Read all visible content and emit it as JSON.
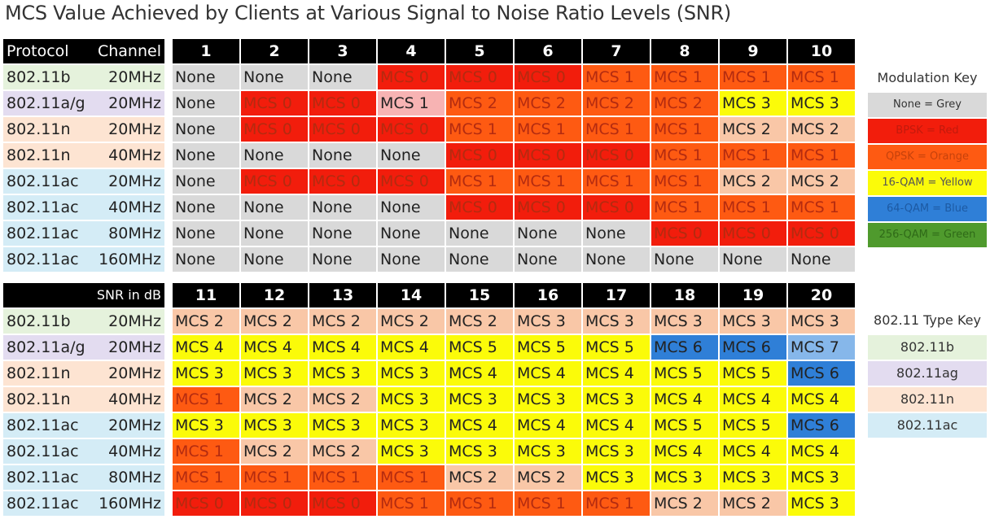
{
  "title": "MCS Value Achieved by Clients at Various Signal to Noise Ratio Levels (SNR)",
  "colors": {
    "grey": "#d9d9d9",
    "red": "#f21d0c",
    "orange": "#fe5a12",
    "light_orange": "#f9c7a7",
    "pink": "#f7b3b3",
    "yellow": "#fbfb09",
    "blue": "#2f7fd7",
    "light_blue": "#86b7ea",
    "green": "#4f9a2d",
    "type_b": "#e5f2dc",
    "type_ag": "#e3dcf0",
    "type_n": "#fde4d2",
    "type_ac": "#d4ecf6"
  },
  "table1": {
    "protocol_header": "Protocol",
    "channel_header": "Channel",
    "columns": [
      "1",
      "2",
      "3",
      "4",
      "5",
      "6",
      "7",
      "8",
      "9",
      "10"
    ]
  },
  "table2": {
    "left_header": "SNR in dB",
    "columns": [
      "11",
      "12",
      "13",
      "14",
      "15",
      "16",
      "17",
      "18",
      "19",
      "20"
    ]
  },
  "rows": [
    {
      "protocol": "802.11b",
      "channel": "20MHz",
      "type": "type_b"
    },
    {
      "protocol": "802.11a/g",
      "channel": "20MHz",
      "type": "type_ag"
    },
    {
      "protocol": "802.11n",
      "channel": "20MHz",
      "type": "type_n"
    },
    {
      "protocol": "802.11n",
      "channel": "40MHz",
      "type": "type_n"
    },
    {
      "protocol": "802.11ac",
      "channel": "20MHz",
      "type": "type_ac"
    },
    {
      "protocol": "802.11ac",
      "channel": "40MHz",
      "type": "type_ac"
    },
    {
      "protocol": "802.11ac",
      "channel": "80MHz",
      "type": "type_ac"
    },
    {
      "protocol": "802.11ac",
      "channel": "160MHz",
      "type": "type_ac"
    }
  ],
  "chart_data": {
    "type": "table",
    "title": "MCS Value Achieved by Clients at Various Signal to Noise Ratio Levels (SNR)",
    "snr_db": [
      1,
      2,
      3,
      4,
      5,
      6,
      7,
      8,
      9,
      10,
      11,
      12,
      13,
      14,
      15,
      16,
      17,
      18,
      19,
      20
    ],
    "values": [
      [
        "None",
        "None",
        "None",
        "MCS 0",
        "MCS 0",
        "MCS 0",
        "MCS 1",
        "MCS 1",
        "MCS 1",
        "MCS 1",
        "MCS 2",
        "MCS 2",
        "MCS 2",
        "MCS 2",
        "MCS 2",
        "MCS 3",
        "MCS 3",
        "MCS 3",
        "MCS 3",
        "MCS 3"
      ],
      [
        "None",
        "MCS 0",
        "MCS 0",
        "MCS 1",
        "MCS 2",
        "MCS 2",
        "MCS 2",
        "MCS 2",
        "MCS 3",
        "MCS 3",
        "MCS 4",
        "MCS 4",
        "MCS 4",
        "MCS 4",
        "MCS 5",
        "MCS 5",
        "MCS 5",
        "MCS 6",
        "MCS 6",
        "MCS 7"
      ],
      [
        "None",
        "MCS 0",
        "MCS 0",
        "MCS 0",
        "MCS 1",
        "MCS 1",
        "MCS 1",
        "MCS 1",
        "MCS 2",
        "MCS 2",
        "MCS 3",
        "MCS 3",
        "MCS 3",
        "MCS 3",
        "MCS 4",
        "MCS 4",
        "MCS 4",
        "MCS 5",
        "MCS 5",
        "MCS 6"
      ],
      [
        "None",
        "None",
        "None",
        "None",
        "MCS 0",
        "MCS 0",
        "MCS 0",
        "MCS 1",
        "MCS 1",
        "MCS 1",
        "MCS 1",
        "MCS 2",
        "MCS 2",
        "MCS 3",
        "MCS 3",
        "MCS 3",
        "MCS 3",
        "MCS 4",
        "MCS 4",
        "MCS 4"
      ],
      [
        "None",
        "MCS 0",
        "MCS 0",
        "MCS 0",
        "MCS 1",
        "MCS 1",
        "MCS 1",
        "MCS 1",
        "MCS 2",
        "MCS 2",
        "MCS 3",
        "MCS 3",
        "MCS 3",
        "MCS 3",
        "MCS 4",
        "MCS 4",
        "MCS 4",
        "MCS 5",
        "MCS 5",
        "MCS 6"
      ],
      [
        "None",
        "None",
        "None",
        "None",
        "MCS 0",
        "MCS 0",
        "MCS 0",
        "MCS 1",
        "MCS 1",
        "MCS 1",
        "MCS 1",
        "MCS 2",
        "MCS 2",
        "MCS 3",
        "MCS 3",
        "MCS 3",
        "MCS 3",
        "MCS 4",
        "MCS 4",
        "MCS 4"
      ],
      [
        "None",
        "None",
        "None",
        "None",
        "None",
        "None",
        "None",
        "MCS 0",
        "MCS 0",
        "MCS 0",
        "MCS 1",
        "MCS 1",
        "MCS 1",
        "MCS 1",
        "MCS 2",
        "MCS 2",
        "MCS 3",
        "MCS 3",
        "MCS 3",
        "MCS 3"
      ],
      [
        "None",
        "None",
        "None",
        "None",
        "None",
        "None",
        "None",
        "None",
        "None",
        "None",
        "MCS 0",
        "MCS 0",
        "MCS 0",
        "MCS 1",
        "MCS 1",
        "MCS 1",
        "MCS 1",
        "MCS 2",
        "MCS 2",
        "MCS 3"
      ]
    ],
    "fills": [
      [
        "grey",
        "grey",
        "grey",
        "red",
        "red",
        "red",
        "orange",
        "orange",
        "orange",
        "orange",
        "light_orange",
        "light_orange",
        "light_orange",
        "light_orange",
        "light_orange",
        "light_orange",
        "light_orange",
        "light_orange",
        "light_orange",
        "light_orange"
      ],
      [
        "grey",
        "red",
        "red",
        "pink",
        "orange",
        "orange",
        "orange",
        "orange",
        "yellow",
        "yellow",
        "yellow",
        "yellow",
        "yellow",
        "yellow",
        "yellow",
        "yellow",
        "yellow",
        "blue",
        "blue",
        "light_blue"
      ],
      [
        "grey",
        "red",
        "red",
        "red",
        "orange",
        "orange",
        "orange",
        "orange",
        "light_orange",
        "light_orange",
        "yellow",
        "yellow",
        "yellow",
        "yellow",
        "yellow",
        "yellow",
        "yellow",
        "yellow",
        "yellow",
        "blue"
      ],
      [
        "grey",
        "grey",
        "grey",
        "grey",
        "red",
        "red",
        "red",
        "orange",
        "orange",
        "orange",
        "orange",
        "light_orange",
        "light_orange",
        "yellow",
        "yellow",
        "yellow",
        "yellow",
        "yellow",
        "yellow",
        "yellow"
      ],
      [
        "grey",
        "red",
        "red",
        "red",
        "orange",
        "orange",
        "orange",
        "orange",
        "light_orange",
        "light_orange",
        "yellow",
        "yellow",
        "yellow",
        "yellow",
        "yellow",
        "yellow",
        "yellow",
        "yellow",
        "yellow",
        "blue"
      ],
      [
        "grey",
        "grey",
        "grey",
        "grey",
        "red",
        "red",
        "red",
        "orange",
        "orange",
        "orange",
        "orange",
        "light_orange",
        "light_orange",
        "yellow",
        "yellow",
        "yellow",
        "yellow",
        "yellow",
        "yellow",
        "yellow"
      ],
      [
        "grey",
        "grey",
        "grey",
        "grey",
        "grey",
        "grey",
        "grey",
        "red",
        "red",
        "red",
        "orange",
        "orange",
        "orange",
        "orange",
        "light_orange",
        "light_orange",
        "yellow",
        "yellow",
        "yellow",
        "yellow"
      ],
      [
        "grey",
        "grey",
        "grey",
        "grey",
        "grey",
        "grey",
        "grey",
        "grey",
        "grey",
        "grey",
        "red",
        "red",
        "red",
        "orange",
        "orange",
        "orange",
        "orange",
        "light_orange",
        "light_orange",
        "yellow"
      ]
    ]
  },
  "modulation_key": {
    "title": "Modulation Key",
    "items": [
      {
        "label": "None = Grey",
        "color": "grey",
        "text": "#333333"
      },
      {
        "label": "BPSK = Red",
        "color": "red",
        "text": "#c21a0c"
      },
      {
        "label": "QPSK = Orange",
        "color": "orange",
        "text": "#c6420c"
      },
      {
        "label": "16-QAM = Yellow",
        "color": "yellow",
        "text": "#555555"
      },
      {
        "label": "64-QAM = Blue",
        "color": "blue",
        "text": "#1d5aa3"
      },
      {
        "label": "256-QAM = Green",
        "color": "green",
        "text": "#2f6a18"
      }
    ]
  },
  "type_key": {
    "title": "802.11 Type Key",
    "items": [
      {
        "label": "802.11b",
        "color": "type_b"
      },
      {
        "label": "802.11ag",
        "color": "type_ag"
      },
      {
        "label": "802.11n",
        "color": "type_n"
      },
      {
        "label": "802.11ac",
        "color": "type_ac"
      }
    ]
  }
}
